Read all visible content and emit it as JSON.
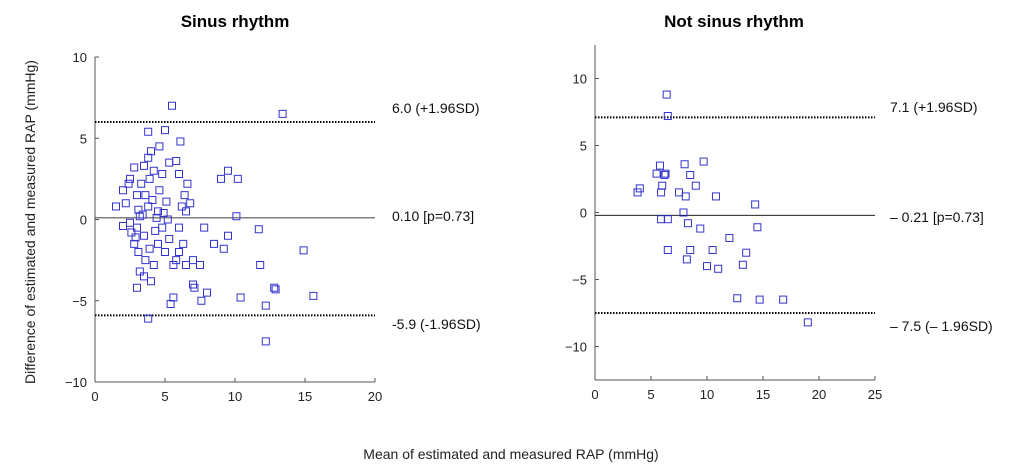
{
  "figure": {
    "xlabel": "Mean of estimated and measured RAP (mmHg)",
    "ylabel": "Difference of estimated and measured RAP (mmHg)"
  },
  "chart_data": [
    {
      "type": "scatter",
      "title": "Sinus rhythm",
      "xlim": [
        0,
        20
      ],
      "ylim": [
        -10,
        10
      ],
      "xticks": [
        "0",
        "5",
        "10",
        "15",
        "20"
      ],
      "yticks": [
        "10",
        "5",
        "0",
        "−5",
        "−10"
      ],
      "xtick_values": [
        0,
        5,
        10,
        15,
        20
      ],
      "ytick_values": [
        10,
        5,
        0,
        -5,
        -10
      ],
      "grid": false,
      "marker_color": "#3333cc",
      "lines": [
        {
          "y": 6.0,
          "style": "dotted",
          "label": "6.0 (+1.96SD)"
        },
        {
          "y": 0.1,
          "style": "solid",
          "label": "0.10 [p=0.73]"
        },
        {
          "y": -5.9,
          "style": "dotted",
          "label": "-5.9 (-1.96SD)"
        }
      ],
      "points": [
        [
          1.5,
          0.8
        ],
        [
          2.2,
          1.0
        ],
        [
          2.0,
          1.8
        ],
        [
          2.5,
          2.5
        ],
        [
          2.8,
          3.2
        ],
        [
          3.0,
          1.5
        ],
        [
          3.2,
          0.2
        ],
        [
          3.0,
          -0.5
        ],
        [
          2.5,
          -0.2
        ],
        [
          2.0,
          -0.4
        ],
        [
          3.5,
          -1.0
        ],
        [
          2.8,
          -1.5
        ],
        [
          3.1,
          -2.0
        ],
        [
          3.2,
          -3.2
        ],
        [
          3.0,
          -4.2
        ],
        [
          3.5,
          -3.5
        ],
        [
          4.0,
          -3.8
        ],
        [
          3.8,
          -6.1
        ],
        [
          3.6,
          -2.5
        ],
        [
          4.2,
          -2.8
        ],
        [
          3.9,
          -1.8
        ],
        [
          4.5,
          -1.5
        ],
        [
          5.0,
          -2.0
        ],
        [
          4.8,
          -0.5
        ],
        [
          5.2,
          0.0
        ],
        [
          4.5,
          0.5
        ],
        [
          3.8,
          0.8
        ],
        [
          4.1,
          1.2
        ],
        [
          3.6,
          1.5
        ],
        [
          4.6,
          1.8
        ],
        [
          3.3,
          2.2
        ],
        [
          3.9,
          2.5
        ],
        [
          4.2,
          3.0
        ],
        [
          3.5,
          3.3
        ],
        [
          3.8,
          3.8
        ],
        [
          4.0,
          4.2
        ],
        [
          4.6,
          4.5
        ],
        [
          3.8,
          5.4
        ],
        [
          5.0,
          5.5
        ],
        [
          5.5,
          7.0
        ],
        [
          4.8,
          2.8
        ],
        [
          5.3,
          3.5
        ],
        [
          5.8,
          3.6
        ],
        [
          6.1,
          4.8
        ],
        [
          6.0,
          2.8
        ],
        [
          6.6,
          2.2
        ],
        [
          6.4,
          1.5
        ],
        [
          6.8,
          1.0
        ],
        [
          6.2,
          0.8
        ],
        [
          6.5,
          0.5
        ],
        [
          6.0,
          -0.5
        ],
        [
          6.3,
          -1.5
        ],
        [
          6.0,
          -2.0
        ],
        [
          5.8,
          -2.5
        ],
        [
          6.5,
          -2.8
        ],
        [
          5.6,
          -2.8
        ],
        [
          7.0,
          -2.5
        ],
        [
          7.5,
          -2.8
        ],
        [
          7.1,
          -4.2
        ],
        [
          7.6,
          -5.0
        ],
        [
          5.6,
          -4.8
        ],
        [
          5.4,
          -5.2
        ],
        [
          7.0,
          -4.0
        ],
        [
          8.0,
          -4.5
        ],
        [
          8.5,
          -1.5
        ],
        [
          9.2,
          -1.8
        ],
        [
          9.5,
          -1.0
        ],
        [
          7.8,
          -0.5
        ],
        [
          9.0,
          2.5
        ],
        [
          9.5,
          3.0
        ],
        [
          10.2,
          2.5
        ],
        [
          10.1,
          0.2
        ],
        [
          10.4,
          -4.8
        ],
        [
          11.8,
          -2.8
        ],
        [
          12.2,
          -5.3
        ],
        [
          12.2,
          -7.5
        ],
        [
          12.8,
          -4.2
        ],
        [
          12.9,
          -4.3
        ],
        [
          13.4,
          6.5
        ],
        [
          14.9,
          -1.9
        ],
        [
          15.6,
          -4.7
        ],
        [
          11.7,
          -0.6
        ],
        [
          2.4,
          2.2
        ],
        [
          3.4,
          0.3
        ],
        [
          4.3,
          -0.7
        ],
        [
          5.1,
          1.1
        ],
        [
          2.9,
          -1.1
        ],
        [
          4.4,
          0.1
        ],
        [
          3.1,
          0.6
        ],
        [
          5.3,
          -1.2
        ],
        [
          4.9,
          0.4
        ],
        [
          2.6,
          -0.8
        ]
      ]
    },
    {
      "type": "scatter",
      "title": "Not sinus rhythm",
      "xlim": [
        0,
        25
      ],
      "ylim": [
        -12.5,
        12.5
      ],
      "xticks": [
        "0",
        "5",
        "10",
        "15",
        "20",
        "25"
      ],
      "yticks": [
        "10",
        "5",
        "0",
        "−5",
        "−10"
      ],
      "xtick_values": [
        0,
        5,
        10,
        15,
        20,
        25
      ],
      "ytick_values": [
        10,
        5,
        0,
        -5,
        -10
      ],
      "grid": false,
      "marker_color": "#3333cc",
      "lines": [
        {
          "y": 7.1,
          "style": "dotted",
          "label": "7.1 (+1.96SD)"
        },
        {
          "y": -0.21,
          "style": "solid",
          "label": "– 0.21 [p=0.73]"
        },
        {
          "y": -7.5,
          "style": "dotted",
          "label": "– 7.5 (– 1.96SD)"
        }
      ],
      "points": [
        [
          3.8,
          1.5
        ],
        [
          4.0,
          1.8
        ],
        [
          5.5,
          2.9
        ],
        [
          5.8,
          3.5
        ],
        [
          6.0,
          2.0
        ],
        [
          5.9,
          1.5
        ],
        [
          6.2,
          2.8
        ],
        [
          6.3,
          2.9
        ],
        [
          6.4,
          8.8
        ],
        [
          6.5,
          7.2
        ],
        [
          5.9,
          -0.5
        ],
        [
          6.5,
          -0.5
        ],
        [
          6.5,
          -2.8
        ],
        [
          7.5,
          1.5
        ],
        [
          8.0,
          3.6
        ],
        [
          8.1,
          1.2
        ],
        [
          7.9,
          0.0
        ],
        [
          8.3,
          -0.8
        ],
        [
          8.2,
          -3.5
        ],
        [
          8.5,
          -2.8
        ],
        [
          8.5,
          2.8
        ],
        [
          9.0,
          2.0
        ],
        [
          9.4,
          -1.2
        ],
        [
          9.7,
          3.8
        ],
        [
          10.0,
          -4.0
        ],
        [
          10.5,
          -2.8
        ],
        [
          11.0,
          -4.2
        ],
        [
          10.8,
          1.2
        ],
        [
          12.0,
          -1.9
        ],
        [
          12.7,
          -6.4
        ],
        [
          13.2,
          -3.9
        ],
        [
          13.5,
          -3.0
        ],
        [
          14.3,
          0.6
        ],
        [
          14.5,
          -1.1
        ],
        [
          14.7,
          -6.5
        ],
        [
          16.8,
          -6.5
        ],
        [
          19.0,
          -8.2
        ]
      ]
    }
  ]
}
